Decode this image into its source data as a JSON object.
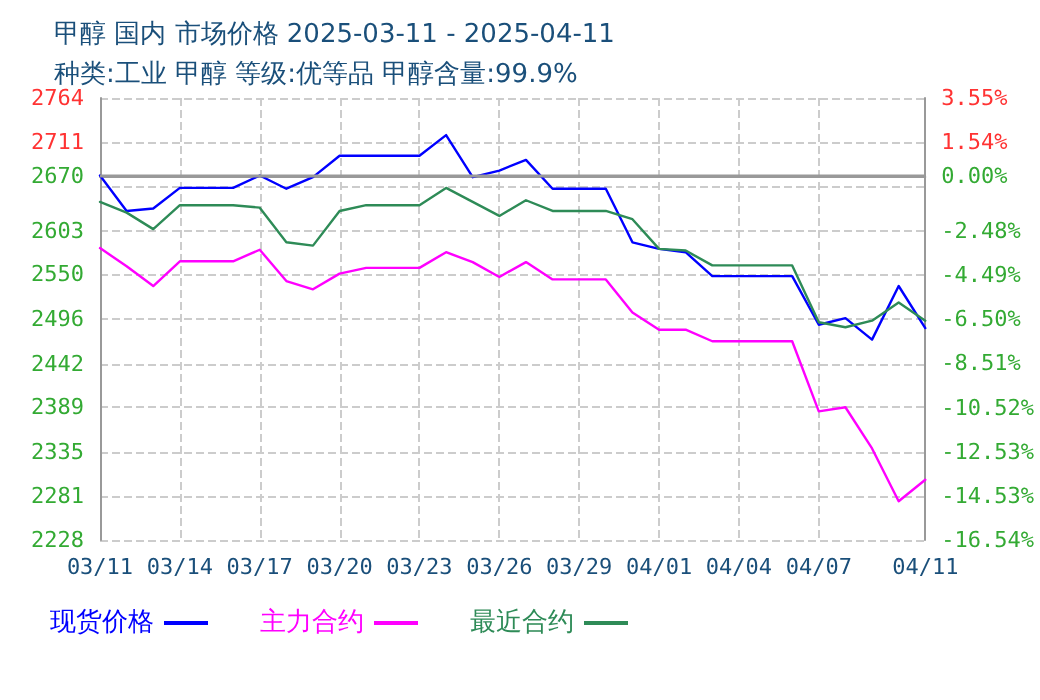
{
  "chart_data": {
    "type": "line",
    "title": "甲醇 国内 市场价格 2025-03-11 - 2025-04-11",
    "subtitle": "种类:工业 甲醇 等级:优等品 甲醇含量:99.9%",
    "x": [
      "2025-03-11",
      "2025-03-12",
      "2025-03-13",
      "2025-03-14",
      "2025-03-15",
      "2025-03-16",
      "2025-03-17",
      "2025-03-18",
      "2025-03-19",
      "2025-03-20",
      "2025-03-21",
      "2025-03-22",
      "2025-03-23",
      "2025-03-24",
      "2025-03-25",
      "2025-03-26",
      "2025-03-27",
      "2025-03-28",
      "2025-03-29",
      "2025-03-30",
      "2025-03-31",
      "2025-04-01",
      "2025-04-02",
      "2025-04-03",
      "2025-04-04",
      "2025-04-05",
      "2025-04-06",
      "2025-04-07",
      "2025-04-08",
      "2025-04-09",
      "2025-04-10",
      "2025-04-11"
    ],
    "series": [
      {
        "name": "现货价格",
        "color": "#0000ff",
        "values": [
          2670,
          2627,
          2630,
          2655,
          2655,
          2655,
          2670,
          2654,
          2668,
          2694,
          2694,
          2694,
          2694,
          2719,
          2668,
          2676,
          2689,
          2654,
          2654,
          2654,
          2589,
          2581,
          2577,
          2548,
          2548,
          2548,
          2548,
          2489,
          2497,
          2471,
          2536,
          2485
        ]
      },
      {
        "name": "主力合约",
        "color": "#ff00ff",
        "values": [
          2582,
          2560,
          2536,
          2566,
          2566,
          2566,
          2580,
          2542,
          2532,
          2551,
          2558,
          2558,
          2558,
          2577,
          2565,
          2547,
          2565,
          2544,
          2544,
          2544,
          2504,
          2483,
          2483,
          2469,
          2469,
          2469,
          2469,
          2384,
          2389,
          2339,
          2275,
          2301
        ]
      },
      {
        "name": "最近合约",
        "color": "#2e8b57",
        "values": [
          2638,
          2625,
          2605,
          2634,
          2634,
          2634,
          2631,
          2589,
          2585,
          2627,
          2634,
          2634,
          2634,
          2655,
          2638,
          2621,
          2640,
          2627,
          2627,
          2627,
          2617,
          2581,
          2579,
          2561,
          2561,
          2561,
          2561,
          2492,
          2486,
          2494,
          2516,
          2494
        ]
      }
    ],
    "xlim": [
      "2025-03-11",
      "2025-04-11"
    ],
    "xticks": [
      {
        "value": "2025-03-11",
        "label": "03/11"
      },
      {
        "value": "2025-03-14",
        "label": "03/14"
      },
      {
        "value": "2025-03-17",
        "label": "03/17"
      },
      {
        "value": "2025-03-20",
        "label": "03/20"
      },
      {
        "value": "2025-03-23",
        "label": "03/23"
      },
      {
        "value": "2025-03-26",
        "label": "03/26"
      },
      {
        "value": "2025-03-29",
        "label": "03/29"
      },
      {
        "value": "2025-04-01",
        "label": "04/01"
      },
      {
        "value": "2025-04-04",
        "label": "04/04"
      },
      {
        "value": "2025-04-07",
        "label": "04/07"
      },
      {
        "value": "2025-04-11",
        "label": "04/11"
      }
    ],
    "ylim": [
      2228,
      2764
    ],
    "yticks": [
      2228,
      2281,
      2335,
      2389,
      2442,
      2496,
      2550,
      2603,
      {
        "value": 2657,
        "label": null
      },
      2670,
      2711,
      2764
    ],
    "y2lim": [
      -16.54,
      3.55
    ],
    "y2ticks": [
      {
        "value": -16.54,
        "label": "-16.54%"
      },
      {
        "value": -14.53,
        "label": "-14.53%"
      },
      {
        "value": -12.53,
        "label": "-12.53%"
      },
      {
        "value": -10.52,
        "label": "-10.52%"
      },
      {
        "value": -8.51,
        "label": "-8.51%"
      },
      {
        "value": -6.5,
        "label": "-6.50%"
      },
      {
        "value": -4.49,
        "label": "-4.49%"
      },
      {
        "value": -2.48,
        "label": "-2.48%"
      },
      {
        "value": 0,
        "label": "0.00%"
      },
      {
        "value": 1.54,
        "label": "1.54%"
      },
      {
        "value": 3.55,
        "label": "3.55%"
      }
    ],
    "ref_lines": [
      {
        "axis": "y",
        "value": 2670,
        "color": "#999999"
      }
    ],
    "grid": true,
    "legend": "bottom",
    "marker": "none",
    "line_style": "solid"
  }
}
